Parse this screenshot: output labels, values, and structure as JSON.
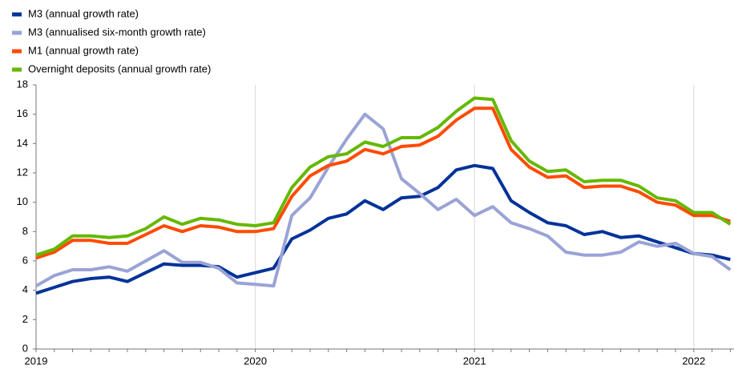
{
  "chart_data": {
    "type": "line",
    "categories": [
      "2019",
      null,
      null,
      null,
      null,
      null,
      null,
      null,
      null,
      null,
      null,
      null,
      "2020",
      null,
      null,
      null,
      null,
      null,
      null,
      null,
      null,
      null,
      null,
      null,
      "2021",
      null,
      null,
      null,
      null,
      null,
      null,
      null,
      null,
      null,
      null,
      null,
      "2022",
      null,
      null
    ],
    "series": [
      {
        "name": "M3 (annual growth rate)",
        "color": "#003299",
        "values": [
          3.8,
          4.2,
          4.6,
          4.8,
          4.9,
          4.6,
          5.2,
          5.8,
          5.7,
          5.7,
          5.6,
          4.9,
          5.2,
          5.5,
          7.5,
          8.1,
          8.9,
          9.2,
          10.1,
          9.5,
          10.3,
          10.4,
          11.0,
          12.2,
          12.5,
          12.3,
          10.1,
          9.3,
          8.6,
          8.4,
          7.8,
          8.0,
          7.6,
          7.7,
          7.3,
          6.9,
          6.5,
          6.4,
          6.1
        ]
      },
      {
        "name": "M3 (annualised six-month growth rate)",
        "color": "#9aa3d6",
        "values": [
          4.3,
          5.0,
          5.4,
          5.4,
          5.6,
          5.3,
          6.0,
          6.7,
          5.9,
          5.9,
          5.5,
          4.5,
          4.4,
          4.3,
          9.1,
          10.3,
          12.4,
          14.3,
          16.0,
          15.0,
          11.6,
          10.6,
          9.5,
          10.2,
          9.1,
          9.7,
          8.6,
          8.2,
          7.7,
          6.6,
          6.4,
          6.4,
          6.6,
          7.3,
          7.0,
          7.2,
          6.5,
          6.3,
          5.4
        ]
      },
      {
        "name": "M1 (annual growth rate)",
        "color": "#ff4b00",
        "values": [
          6.2,
          6.6,
          7.4,
          7.4,
          7.2,
          7.2,
          7.8,
          8.4,
          8.0,
          8.4,
          8.3,
          8.0,
          8.0,
          8.2,
          10.4,
          11.8,
          12.5,
          12.8,
          13.6,
          13.3,
          13.8,
          13.9,
          14.5,
          15.6,
          16.4,
          16.4,
          13.6,
          12.4,
          11.7,
          11.8,
          11.0,
          11.1,
          11.1,
          10.7,
          10.0,
          9.8,
          9.1,
          9.1,
          8.7
        ]
      },
      {
        "name": "Overnight deposits (annual growth rate)",
        "color": "#65b800",
        "values": [
          6.4,
          6.8,
          7.7,
          7.7,
          7.6,
          7.7,
          8.2,
          9.0,
          8.5,
          8.9,
          8.8,
          8.5,
          8.4,
          8.6,
          11.0,
          12.4,
          13.1,
          13.3,
          14.1,
          13.8,
          14.4,
          14.4,
          15.1,
          16.2,
          17.1,
          17.0,
          14.2,
          12.8,
          12.1,
          12.2,
          11.4,
          11.5,
          11.5,
          11.1,
          10.3,
          10.1,
          9.3,
          9.3,
          8.5
        ]
      }
    ],
    "ylim": [
      0,
      18
    ],
    "yticks": [
      0,
      2,
      4,
      6,
      8,
      10,
      12,
      14,
      16,
      18
    ],
    "grid": "x",
    "legend": "top-left"
  }
}
